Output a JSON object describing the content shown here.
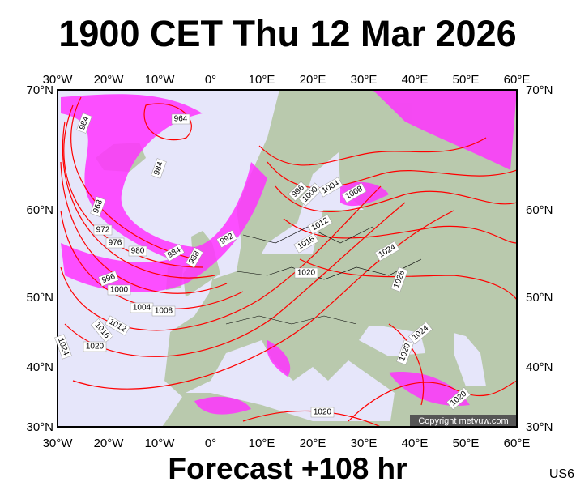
{
  "header": {
    "title": "1900 CET Thu 12 Mar 2026"
  },
  "map": {
    "longitude_labels": [
      "30°W",
      "20°W",
      "10°W",
      "0°",
      "10°E",
      "20°E",
      "30°E",
      "40°E",
      "50°E",
      "60°E"
    ],
    "latitude_labels": [
      "70°N",
      "60°N",
      "50°N",
      "40°N",
      "30°N"
    ],
    "isobar_labels": [
      "984",
      "964",
      "984",
      "968",
      "972",
      "976",
      "980",
      "984",
      "988",
      "992",
      "996",
      "1000",
      "1004",
      "1008",
      "1012",
      "1016",
      "1020",
      "1024",
      "996",
      "1000",
      "1004",
      "1008",
      "1012",
      "1016",
      "1020",
      "1024",
      "1028",
      "1024",
      "1020",
      "1020",
      "1020"
    ],
    "credit": "Copyright metvuw.com"
  },
  "footer": {
    "forecast": "Forecast +108 hr",
    "code": "US6"
  }
}
